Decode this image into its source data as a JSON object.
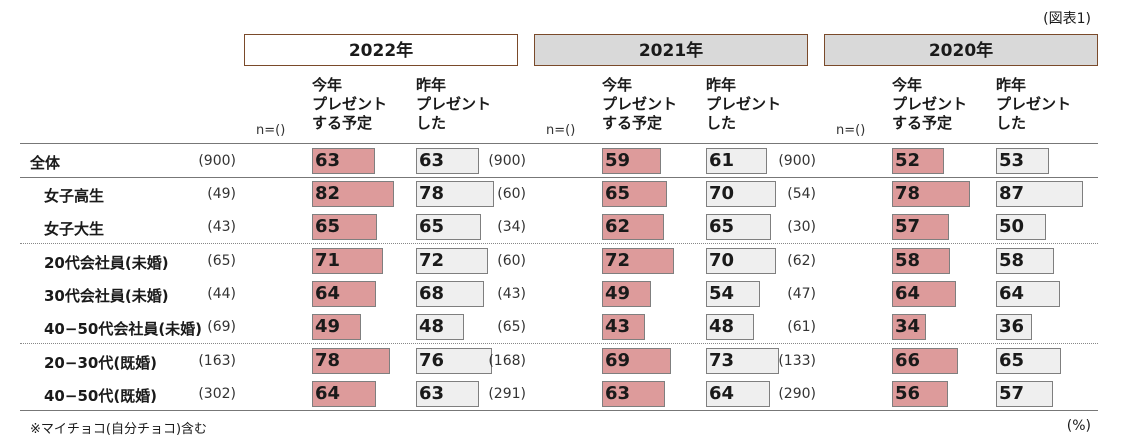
{
  "figure_label": "(図表1)",
  "footnote": "※マイチョコ(自分チョコ)含む",
  "unit": "(%)",
  "chart_data": {
    "type": "bar",
    "groups": [
      "2022年",
      "2021年",
      "2020年"
    ],
    "column_headers": {
      "n": "n=()",
      "this_year": "今年\nプレゼント\nする予定",
      "last_year": "昨年\nプレゼント\nした"
    },
    "categories": [
      "全体",
      "女子高生",
      "女子大生",
      "20代会社員(未婚)",
      "30代会社員(未婚)",
      "40−50代会社員(未婚)",
      "20−30代(既婚)",
      "40−50代(既婚)"
    ],
    "n_display": [
      [
        "(900)",
        "(49)",
        "(43)",
        "(65)",
        "(44)",
        "(69)",
        "(163)",
        "(302)"
      ],
      [
        "(900)",
        "(60)",
        "(34)",
        "(60)",
        "(43)",
        "(65)",
        "(168)",
        "(291)"
      ],
      [
        "(900)",
        "(54)",
        "(30)",
        "(62)",
        "(47)",
        "(61)",
        "(133)",
        "(290)"
      ]
    ],
    "series": [
      {
        "group": "2022年",
        "kind": "this_year",
        "values": [
          63,
          82,
          65,
          71,
          64,
          49,
          78,
          64
        ]
      },
      {
        "group": "2022年",
        "kind": "last_year",
        "values": [
          63,
          78,
          65,
          72,
          68,
          48,
          76,
          63
        ]
      },
      {
        "group": "2021年",
        "kind": "this_year",
        "values": [
          59,
          65,
          62,
          72,
          49,
          43,
          69,
          63
        ]
      },
      {
        "group": "2021年",
        "kind": "last_year",
        "values": [
          61,
          70,
          65,
          70,
          54,
          48,
          73,
          64
        ]
      },
      {
        "group": "2020年",
        "kind": "this_year",
        "values": [
          52,
          78,
          57,
          58,
          64,
          34,
          66,
          56
        ]
      },
      {
        "group": "2020年",
        "kind": "last_year",
        "values": [
          53,
          87,
          50,
          58,
          64,
          36,
          65,
          57
        ]
      }
    ],
    "colors": {
      "this_year": "#dd9b9b",
      "last_year": "#efefef",
      "border": "#7f7f7f",
      "year_2022_bg": "#ffffff",
      "year_other_bg": "#d9d9d9"
    },
    "ylim": [
      0,
      100
    ]
  }
}
